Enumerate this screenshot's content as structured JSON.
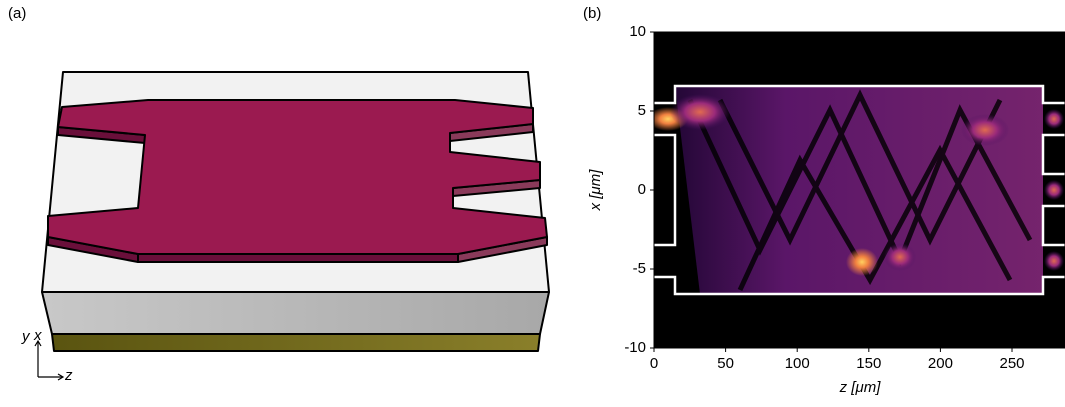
{
  "panel_a": {
    "label": "(a)",
    "axis_y": "y",
    "axis_x": "x",
    "axis_z": "z"
  },
  "panel_b": {
    "label": "(b)",
    "type": "heatmap",
    "xlabel": "z [μm]",
    "ylabel": "x [μm]",
    "xlim": [
      0,
      287
    ],
    "ylim": [
      -10,
      10
    ],
    "xticks": [
      0,
      50,
      100,
      150,
      200,
      250
    ],
    "yticks": [
      -10,
      -5,
      0,
      5,
      10
    ]
  }
}
